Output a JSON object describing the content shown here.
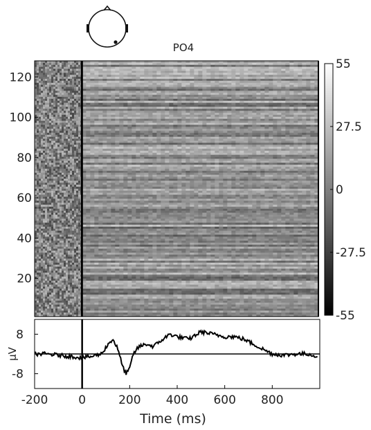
{
  "chart_data": [
    {
      "type": "heatmap",
      "title": "PO4",
      "ylim": [
        1,
        128
      ],
      "y_ticks": [
        20,
        40,
        60,
        80,
        100,
        120
      ],
      "xlim": [
        -200,
        1000
      ],
      "colorbar": {
        "min": -55,
        "max": 55,
        "ticks": [
          55,
          27.5,
          0,
          -27.5,
          -55
        ],
        "tick_labels": [
          "55",
          "27.5",
          "0",
          "-27.5",
          "-55"
        ],
        "colormap": "gray"
      },
      "stimulus_marker_x": 0,
      "rows": 128,
      "description_values": {
        "pre_stimulus_mean": 0,
        "post_stimulus_mean": 8
      }
    },
    {
      "type": "line",
      "xlabel": "Time (ms)",
      "ylabel": "μV",
      "xlim": [
        -200,
        1000
      ],
      "ylim": [
        -14,
        14
      ],
      "x_ticks": [
        -200,
        0,
        200,
        400,
        600,
        800
      ],
      "x_tick_labels": [
        "-200",
        "0",
        "200",
        "400",
        "600",
        "800"
      ],
      "y_ticks": [
        8,
        -8
      ],
      "y_tick_labels": [
        "8",
        "-8"
      ],
      "series": [
        {
          "x": [
            -200,
            -150,
            -100,
            -50,
            0,
            40,
            80,
            110,
            130,
            150,
            170,
            185,
            200,
            215,
            240,
            270,
            300,
            340,
            370,
            400,
            450,
            500,
            550,
            600,
            640,
            680,
            720,
            760,
            800,
            850,
            900,
            950,
            990
          ],
          "y": [
            0,
            0,
            -0.5,
            -1,
            -1.5,
            -1,
            0,
            4,
            6,
            2,
            -5,
            -8,
            -6,
            0,
            3,
            4,
            3,
            6,
            8,
            7,
            6,
            9,
            8,
            7,
            7,
            6,
            4,
            2,
            0,
            -0.5,
            0,
            0,
            -1
          ]
        }
      ],
      "baseline_y": 0,
      "stimulus_marker_x": 0
    }
  ],
  "scalp_map": {
    "electrode": "PO4"
  }
}
